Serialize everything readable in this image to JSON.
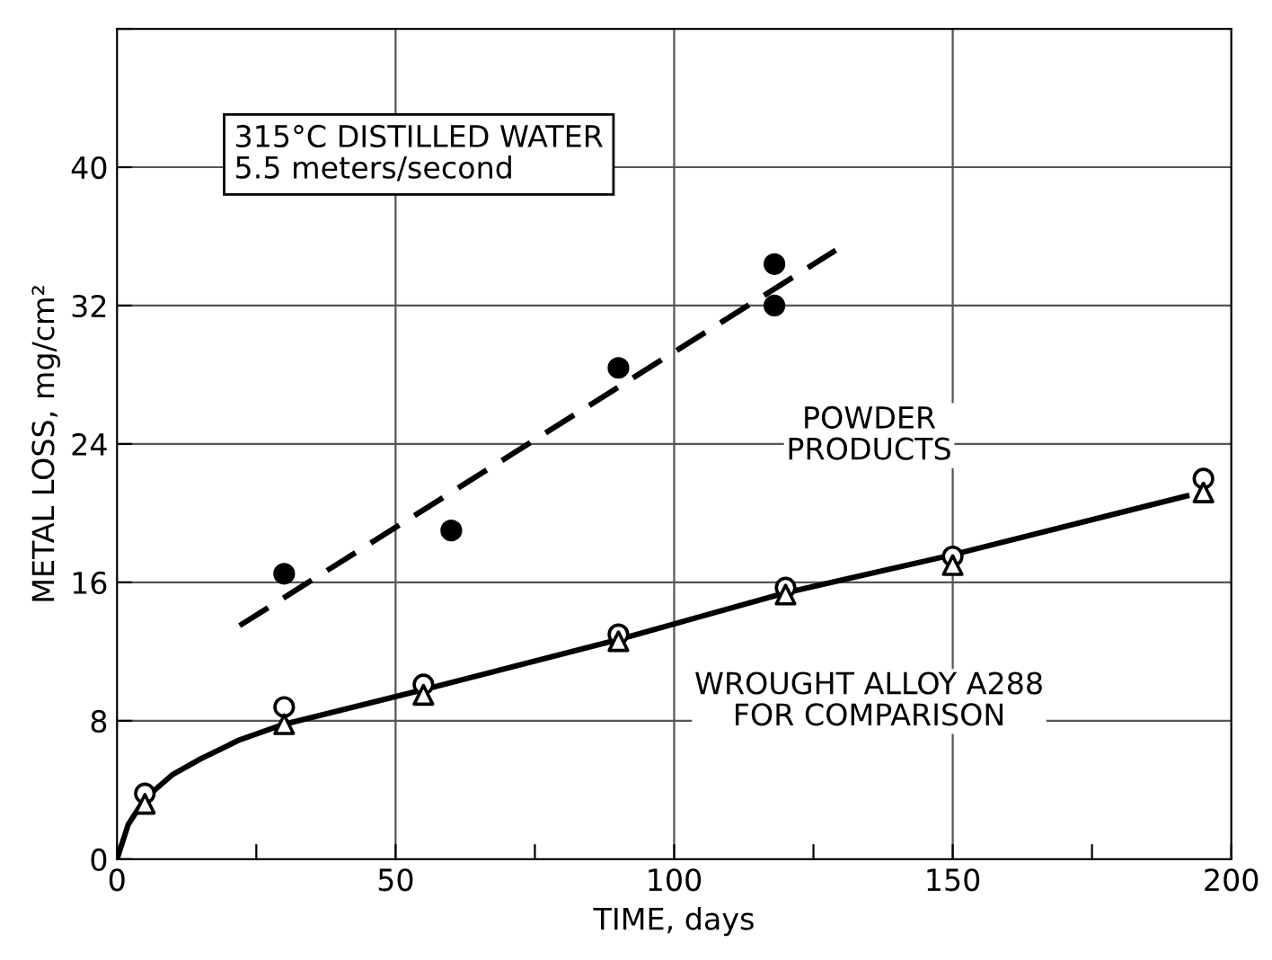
{
  "chart_data": {
    "type": "scatter",
    "xlabel": "TIME, days",
    "ylabel": "METAL LOSS, mg/cm²",
    "xlim": [
      0,
      200
    ],
    "ylim": [
      0,
      48
    ],
    "xticks": [
      0,
      {
        "value": 25,
        "label": null
      },
      50,
      {
        "value": 75,
        "label": null
      },
      100,
      {
        "value": 125,
        "label": null
      },
      150,
      {
        "value": 175,
        "label": null
      },
      200
    ],
    "yticks": [
      0,
      8,
      16,
      24,
      32,
      40,
      {
        "value": 48,
        "label": null
      }
    ],
    "grid": true,
    "legend": false,
    "annotations": [
      "315°C DISTILLED WATER\n5.5 meters/second",
      "POWDER\nPRODUCTS",
      "WROUGHT ALLOY A288\nFOR COMPARISON"
    ],
    "series": [
      {
        "marker": "circle",
        "color": "#000000",
        "x": [
          30,
          60,
          90,
          118,
          118
        ],
        "values": [
          16.5,
          19,
          28.4,
          34.4,
          32
        ]
      },
      {
        "type": "line",
        "line_style": "dashed",
        "marker": "none",
        "color": "#000000",
        "x": [
          22,
          129
        ],
        "values": [
          13.5,
          35.2
        ]
      },
      {
        "marker": "circle",
        "color": "#000000",
        "x": [
          5,
          30,
          55,
          90,
          120,
          150,
          195
        ],
        "values": [
          3.8,
          8.8,
          10.1,
          13,
          15.7,
          17.5,
          22
        ]
      },
      {
        "marker": "triangle",
        "color": "#000000",
        "x": [
          5,
          30,
          55,
          90,
          120,
          150,
          195
        ],
        "values": [
          3.2,
          7.8,
          9.5,
          12.6,
          15.3,
          17,
          21.2
        ]
      },
      {
        "type": "line",
        "line_style": "solid",
        "marker": "none",
        "color": "#000000",
        "x": [
          0,
          2,
          5,
          10,
          15,
          22,
          30,
          55,
          90,
          120,
          150,
          192
        ],
        "values": [
          0,
          2,
          3.5,
          4.9,
          5.8,
          6.9,
          7.8,
          9.8,
          12.7,
          15.4,
          17.6,
          21
        ]
      }
    ]
  }
}
